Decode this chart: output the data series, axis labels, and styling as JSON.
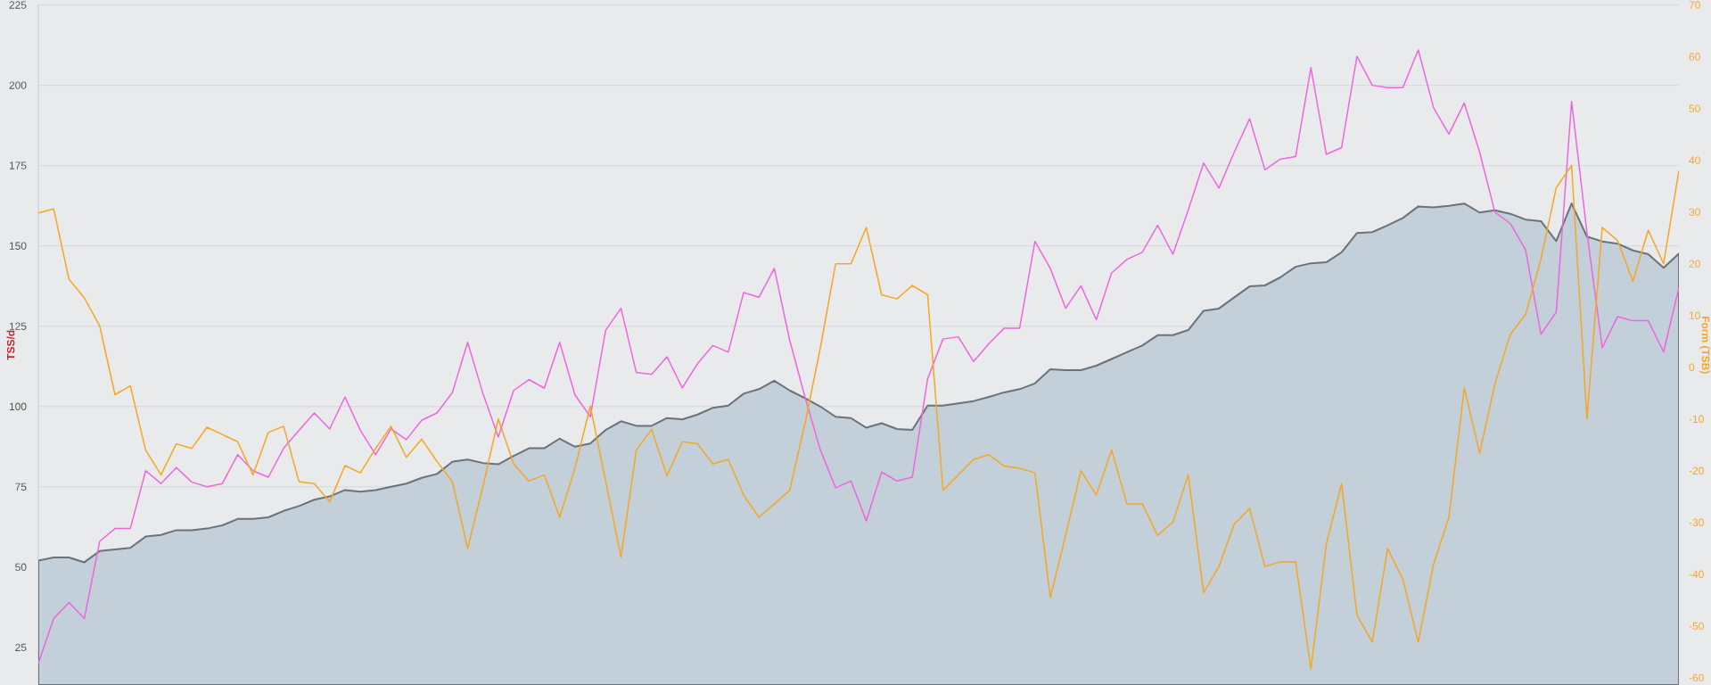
{
  "chart_data": {
    "type": "line",
    "ylabel": "TSS/d",
    "y2label": "Form (TSB)",
    "categories": [
      null,
      null,
      null,
      null,
      null,
      null,
      null,
      null,
      null,
      null,
      null,
      null,
      null,
      null,
      null,
      null,
      null,
      null,
      null,
      null,
      null,
      null,
      null,
      null,
      null,
      null,
      null,
      null,
      null,
      null,
      null,
      null,
      null,
      null,
      null,
      null,
      null,
      null,
      null,
      null,
      null,
      null,
      null,
      null,
      null,
      null,
      null,
      null,
      null,
      null,
      null,
      null,
      null,
      null,
      null,
      null,
      null,
      null,
      null,
      null,
      null,
      null,
      null,
      null,
      null,
      null,
      null,
      null,
      null,
      null,
      null,
      null,
      null,
      null,
      null,
      null,
      null,
      null,
      null,
      null,
      null,
      null,
      null,
      null,
      null,
      null,
      null,
      null,
      null,
      null,
      null,
      null,
      null,
      null,
      null,
      null,
      null,
      null,
      null,
      null,
      null,
      null,
      null,
      null,
      null,
      null,
      null,
      null
    ],
    "ylim": [
      13.3,
      225
    ],
    "yticks": [
      25,
      50,
      75,
      100,
      125,
      150,
      175,
      200,
      225
    ],
    "y2lim": [
      -61.4,
      70
    ],
    "y2ticks": [
      -60,
      -50,
      -40,
      -30,
      -20,
      -10,
      0,
      10,
      20,
      30,
      40,
      50,
      60,
      70
    ],
    "grid": "y",
    "series": [
      {
        "type": "area",
        "color": "#c3d0da",
        "values": [
          52,
          53,
          53,
          51.5,
          55,
          55.5,
          56,
          59.5,
          60,
          61.5,
          61.5,
          62,
          63,
          65,
          65,
          65.5,
          67.5,
          69,
          71,
          72,
          74,
          73.5,
          74,
          75,
          76,
          77.8,
          79,
          82.8,
          83.5,
          82.4,
          82,
          84.6,
          87,
          87,
          90,
          87.5,
          88.5,
          92.7,
          95.4,
          94,
          94,
          96.4,
          96,
          97.5,
          99.6,
          100.3,
          104,
          105.4,
          108,
          105,
          102.6,
          100,
          96.8,
          96.4,
          93.4,
          94.8,
          93,
          92.7,
          100.3,
          100.3,
          101,
          101.7,
          103,
          104.4,
          105.4,
          107.2,
          111.6,
          111.3,
          111.3,
          112.7,
          114.8,
          116.9,
          119,
          122.2,
          122.2,
          123.8,
          129.8,
          130.5,
          134,
          137.4,
          137.7,
          140.2,
          143.5,
          144.6,
          144.9,
          148,
          154,
          154.3,
          156.4,
          158.7,
          162.3,
          162,
          162.5,
          163.2,
          160.4,
          161.1,
          160,
          158.2,
          157.7,
          151.5,
          163.2,
          152.9,
          151.4,
          150.7,
          148.6,
          147.4,
          143.2,
          147.6
        ]
      },
      {
        "color": "#ee66dd",
        "values": [
          20,
          34,
          39,
          34,
          58,
          62,
          62,
          80,
          76,
          81,
          76.5,
          75,
          76,
          85,
          80,
          78,
          87,
          92.6,
          98,
          93,
          103,
          92.6,
          85,
          93,
          89.7,
          95.7,
          98,
          104.3,
          120,
          104,
          90.5,
          105,
          108.4,
          105.7,
          120,
          103.6,
          96.8,
          123.7,
          130.6,
          110.6,
          110,
          115.5,
          105.8,
          113.4,
          119,
          116.9,
          135.5,
          134,
          143,
          120.7,
          103,
          86.5,
          74.7,
          76.8,
          64.4,
          79.6,
          76.8,
          78,
          108.6,
          121,
          121.7,
          114,
          119.6,
          124.4,
          124.4,
          151.4,
          143,
          130.6,
          137.6,
          127,
          141.6,
          145.8,
          148,
          156.4,
          147.4,
          161.2,
          175.8,
          168,
          179.2,
          189.6,
          173.7,
          177,
          177.8,
          205.5,
          178.5,
          180.6,
          209,
          200,
          199.3,
          199.3,
          211,
          193,
          184.8,
          194.5,
          179.2,
          160.5,
          157,
          148.8,
          122.5,
          129.4,
          195,
          154.2,
          118.3,
          128,
          126.7,
          126.7,
          117,
          137
        ]
      },
      {
        "axis": "y2",
        "color": "#f5a623",
        "values": [
          29.8,
          30.6,
          17,
          13.4,
          8,
          -5.3,
          -3.6,
          -16,
          -20.8,
          -14.8,
          -15.7,
          -11.6,
          -13,
          -14.4,
          -20.8,
          -12.6,
          -11.4,
          -22.1,
          -22.5,
          -26,
          -19,
          -20.4,
          -15.7,
          -11.4,
          -17.4,
          -13.9,
          -18.2,
          -22.1,
          -35,
          -23,
          -10,
          -18.7,
          -22,
          -20.8,
          -29,
          -19.5,
          -7.5,
          -22,
          -36.7,
          -16,
          -12,
          -21,
          -14.4,
          -14.8,
          -18.7,
          -17.8,
          -24.7,
          -29,
          -26.4,
          -23.8,
          -10.9,
          3.7,
          20,
          20,
          27,
          14,
          13.2,
          15.8,
          14,
          -23.8,
          -20.8,
          -17.8,
          -16.9,
          -19.1,
          -19.5,
          -20.4,
          -44.5,
          -32.5,
          -20,
          -24.7,
          -16,
          -26.4,
          -26.4,
          -32.5,
          -29.9,
          -20.8,
          -43.6,
          -38.5,
          -30.3,
          -27.3,
          -38.5,
          -37.6,
          -37.6,
          -58.3,
          -34.2,
          -22.5,
          -47.9,
          -53.1,
          -35,
          -41,
          -53.1,
          -38,
          -29,
          -4,
          -16.6,
          -3.2,
          6.3,
          10.2,
          20.9,
          34.7,
          39,
          -10,
          27,
          24.5,
          16.6,
          26.5,
          20,
          38
        ]
      }
    ]
  }
}
